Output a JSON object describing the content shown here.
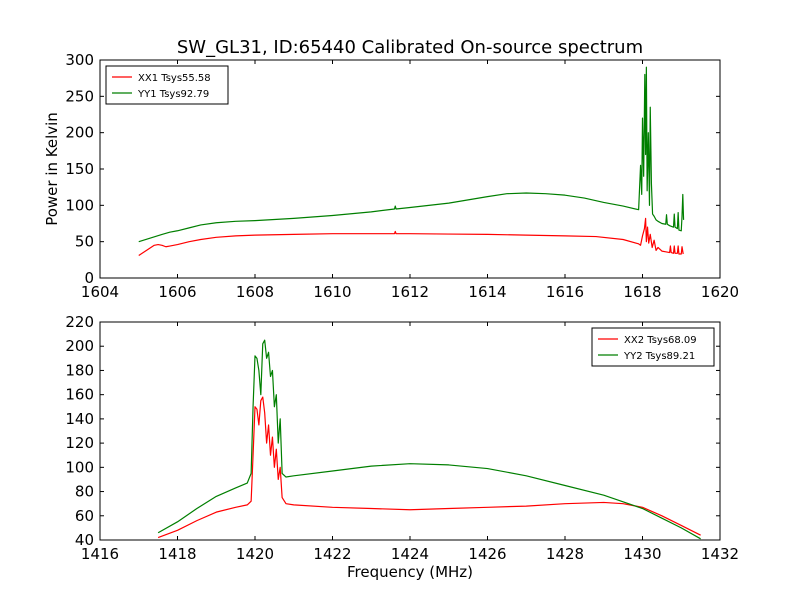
{
  "figure": {
    "title": "SW_GL31, ID:65440 Calibrated On-source spectrum",
    "xlabel": "Frequency (MHz)",
    "ylabel": "Power in Kelvin"
  },
  "colors": {
    "red": "#ff0000",
    "green": "#007f00"
  },
  "chart_data": [
    {
      "type": "line",
      "title": "SW_GL31, ID:65440 Calibrated On-source spectrum",
      "xlabel": "",
      "ylabel": "Power in Kelvin",
      "xlim": [
        1604,
        1620
      ],
      "ylim": [
        0,
        300
      ],
      "xticks": [
        1604,
        1606,
        1608,
        1610,
        1612,
        1614,
        1616,
        1618,
        1620
      ],
      "yticks": [
        0,
        50,
        100,
        150,
        200,
        250,
        300
      ],
      "legend_position": "top-left",
      "grid": false,
      "series": [
        {
          "name": "XX1 Tsys55.58",
          "color": "#ff0000",
          "x": [
            1605.0,
            1605.2,
            1605.4,
            1605.5,
            1605.6,
            1605.7,
            1605.8,
            1605.9,
            1606.0,
            1606.3,
            1606.6,
            1607.0,
            1607.5,
            1608.0,
            1609.0,
            1610.0,
            1611.0,
            1611.6,
            1611.62,
            1611.64,
            1612.0,
            1613.0,
            1614.0,
            1615.0,
            1616.0,
            1616.8,
            1617.5,
            1617.9,
            1617.95,
            1618.0,
            1618.05,
            1618.08,
            1618.1,
            1618.13,
            1618.16,
            1618.2,
            1618.25,
            1618.3,
            1618.35,
            1618.4,
            1618.5,
            1618.6,
            1618.7,
            1618.72,
            1618.74,
            1618.8,
            1618.82,
            1618.84,
            1618.9,
            1618.92,
            1618.94,
            1619.0,
            1619.02,
            1619.05
          ],
          "y": [
            31,
            38,
            45,
            46,
            45,
            43,
            44,
            45,
            46,
            50,
            53,
            56,
            58,
            59,
            60,
            61,
            61,
            61,
            64,
            61,
            61,
            60.5,
            60,
            59,
            58,
            57,
            53,
            47,
            45,
            58,
            68,
            82,
            50,
            70,
            48,
            60,
            42,
            52,
            38,
            42,
            37,
            36,
            35,
            44,
            35,
            34,
            44,
            34,
            34,
            44,
            33,
            33,
            43,
            33
          ]
        },
        {
          "name": "YY1 Tsys92.79",
          "color": "#007f00",
          "x": [
            1605.0,
            1605.3,
            1605.6,
            1605.8,
            1606.0,
            1606.3,
            1606.6,
            1607.0,
            1607.5,
            1608.0,
            1609.0,
            1610.0,
            1611.0,
            1611.6,
            1611.62,
            1611.64,
            1612.0,
            1613.0,
            1614.0,
            1614.5,
            1615.0,
            1615.5,
            1616.0,
            1616.5,
            1617.0,
            1617.5,
            1617.9,
            1617.95,
            1617.98,
            1618.0,
            1618.03,
            1618.06,
            1618.08,
            1618.1,
            1618.12,
            1618.15,
            1618.18,
            1618.2,
            1618.23,
            1618.26,
            1618.3,
            1618.35,
            1618.4,
            1618.5,
            1618.6,
            1618.62,
            1618.64,
            1618.7,
            1618.8,
            1618.82,
            1618.84,
            1618.9,
            1618.92,
            1618.94,
            1619.0,
            1619.02,
            1619.04,
            1619.06
          ],
          "y": [
            50,
            55,
            60,
            63,
            65,
            69,
            73,
            76,
            78,
            79,
            82,
            86,
            91,
            95,
            99,
            95,
            97,
            103,
            112,
            116,
            117,
            116,
            114,
            110,
            104,
            99,
            94,
            155,
            115,
            220,
            140,
            280,
            170,
            290,
            120,
            200,
            100,
            235,
            130,
            88,
            85,
            80,
            78,
            75,
            74,
            87,
            74,
            72,
            70,
            88,
            70,
            68,
            90,
            66,
            65,
            85,
            115,
            80
          ]
        }
      ]
    },
    {
      "type": "line",
      "title": "",
      "xlabel": "Frequency (MHz)",
      "ylabel": "",
      "xlim": [
        1416,
        1432
      ],
      "ylim": [
        40,
        220
      ],
      "xticks": [
        1416,
        1418,
        1420,
        1422,
        1424,
        1426,
        1428,
        1430,
        1432
      ],
      "yticks": [
        40,
        60,
        80,
        100,
        120,
        140,
        160,
        180,
        200,
        220
      ],
      "legend_position": "top-right",
      "grid": false,
      "series": [
        {
          "name": "XX2 Tsys68.09",
          "color": "#ff0000",
          "x": [
            1417.5,
            1418.0,
            1418.5,
            1419.0,
            1419.5,
            1419.8,
            1419.9,
            1419.95,
            1420.0,
            1420.05,
            1420.1,
            1420.15,
            1420.2,
            1420.25,
            1420.3,
            1420.35,
            1420.4,
            1420.45,
            1420.5,
            1420.55,
            1420.6,
            1420.65,
            1420.7,
            1420.8,
            1421.0,
            1422.0,
            1423.0,
            1424.0,
            1425.0,
            1426.0,
            1427.0,
            1428.0,
            1429.0,
            1429.5,
            1430.0,
            1430.5,
            1431.0,
            1431.5
          ],
          "y": [
            42,
            48,
            56,
            63,
            67,
            69,
            72,
            110,
            150,
            148,
            135,
            155,
            158,
            145,
            120,
            135,
            110,
            125,
            100,
            115,
            90,
            100,
            75,
            70,
            69,
            67,
            66,
            65,
            66,
            67,
            68,
            70,
            71,
            70,
            67,
            60,
            52,
            44
          ]
        },
        {
          "name": "YY2 Tsys89.21",
          "color": "#007f00",
          "x": [
            1417.5,
            1418.0,
            1418.5,
            1419.0,
            1419.5,
            1419.8,
            1419.9,
            1419.95,
            1420.0,
            1420.05,
            1420.1,
            1420.15,
            1420.2,
            1420.25,
            1420.3,
            1420.35,
            1420.4,
            1420.45,
            1420.5,
            1420.55,
            1420.6,
            1420.65,
            1420.7,
            1420.8,
            1421.0,
            1422.0,
            1423.0,
            1424.0,
            1425.0,
            1426.0,
            1427.0,
            1428.0,
            1429.0,
            1430.0,
            1430.5,
            1431.0,
            1431.5
          ],
          "y": [
            46,
            55,
            66,
            76,
            83,
            87,
            95,
            150,
            192,
            190,
            180,
            160,
            202,
            205,
            190,
            195,
            175,
            180,
            150,
            160,
            120,
            140,
            95,
            92,
            93,
            97,
            101,
            103,
            102,
            99,
            93,
            85,
            77,
            66,
            58,
            50,
            41
          ]
        }
      ]
    }
  ]
}
